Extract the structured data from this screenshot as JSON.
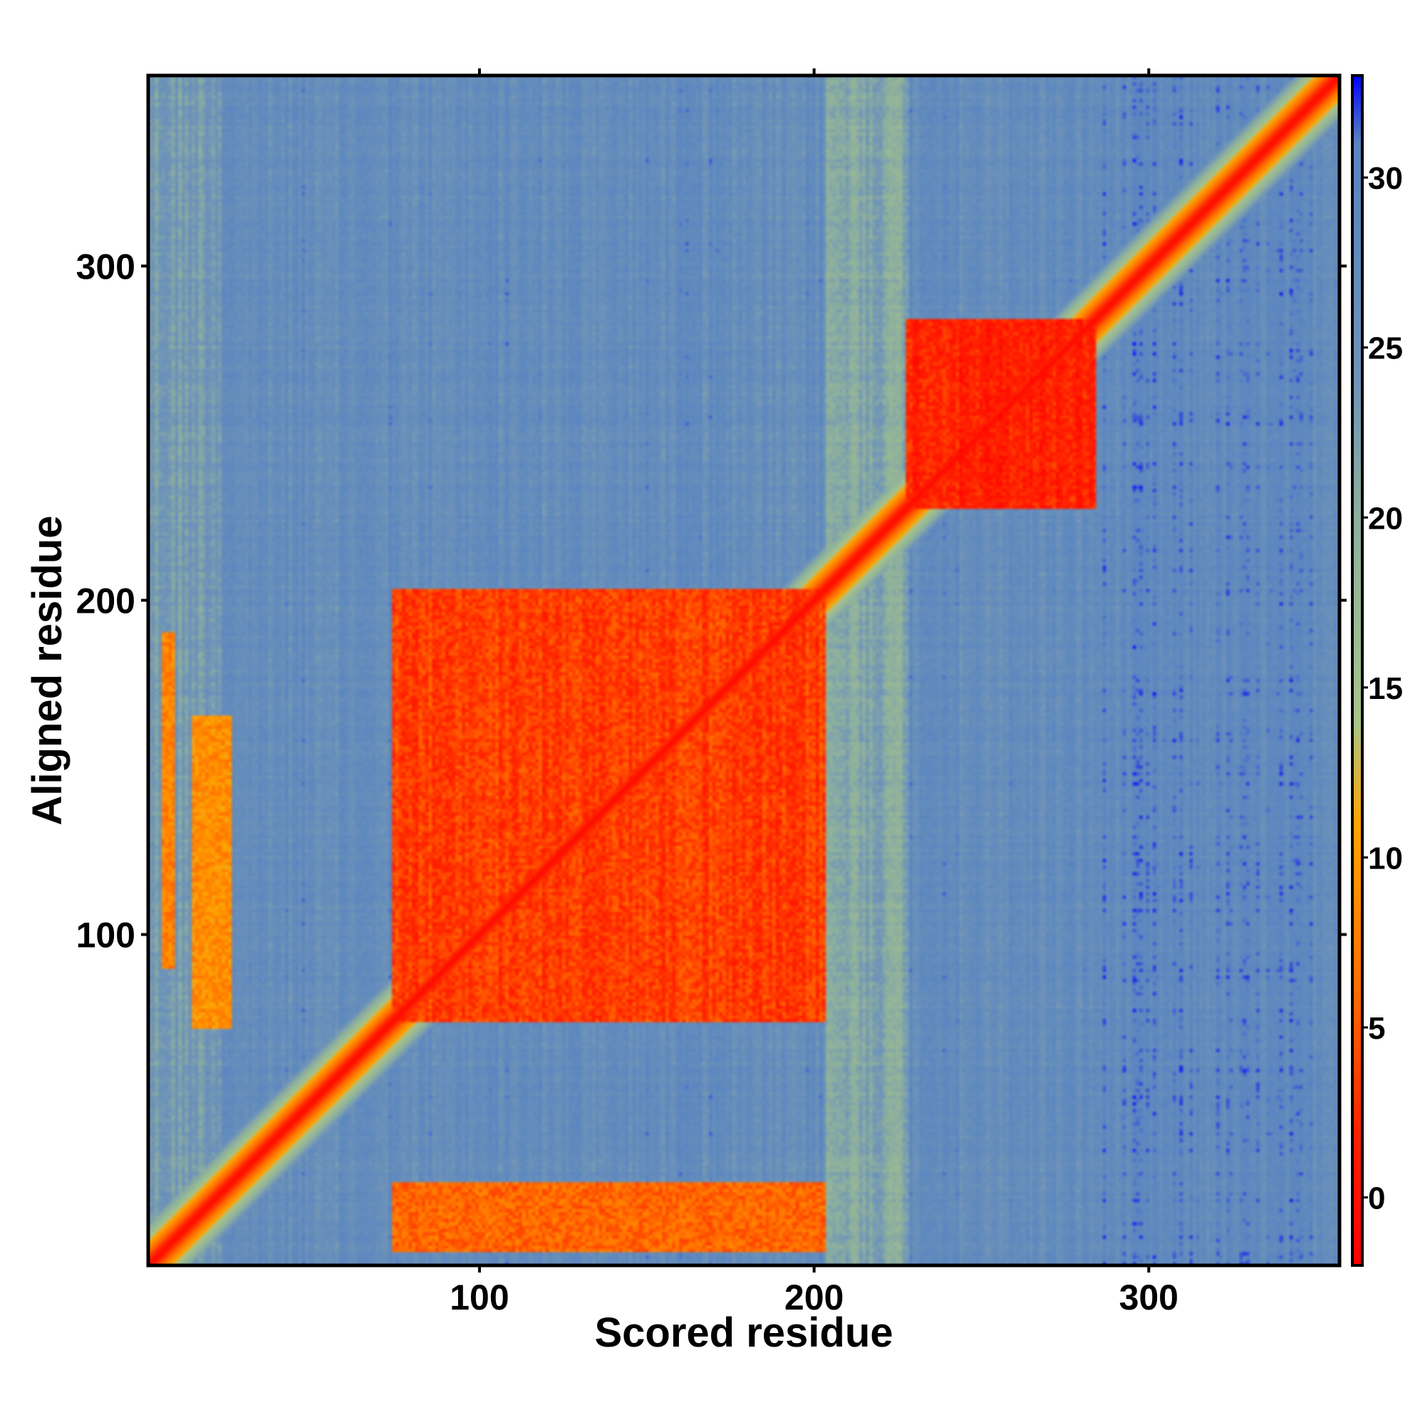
{
  "chart_data": {
    "type": "heatmap",
    "title": "",
    "xlabel": "Scored residue",
    "ylabel": "Aligned residue",
    "xlim": [
      1,
      357
    ],
    "ylim": [
      1,
      357
    ],
    "x_ticks": [
      100,
      200,
      300
    ],
    "y_ticks": [
      100,
      200,
      300
    ],
    "x_tick_labels": [
      "100",
      "200",
      "300"
    ],
    "y_tick_labels": [
      "100",
      "200",
      "300"
    ],
    "colorbar": {
      "range": [
        -2,
        33
      ],
      "ticks": [
        0,
        5,
        10,
        15,
        20,
        25,
        30
      ],
      "tick_labels": [
        "0",
        "5",
        "10",
        "15",
        "20",
        "25",
        "30"
      ],
      "stops": [
        {
          "value": -2,
          "color": "#ff0000"
        },
        {
          "value": 2,
          "color": "#ff2200"
        },
        {
          "value": 6,
          "color": "#ff6a00"
        },
        {
          "value": 11,
          "color": "#ffa500"
        },
        {
          "value": 14,
          "color": "#a8c48a"
        },
        {
          "value": 20,
          "color": "#8db09e"
        },
        {
          "value": 24,
          "color": "#6f94b8"
        },
        {
          "value": 30,
          "color": "#5b86c0"
        },
        {
          "value": 31,
          "color": "#5b86c0"
        },
        {
          "value": 33,
          "color": "#0000ff"
        }
      ]
    },
    "background_value": 27,
    "domains": [
      {
        "range": [
          74,
          203
        ],
        "value": 3.5
      },
      {
        "range": [
          228,
          284
        ],
        "value": 1.5
      }
    ],
    "off_diagonal_blocks": [
      {
        "x_range": [
          74,
          203
        ],
        "y_range": [
          5,
          25
        ],
        "value": 6
      },
      {
        "x_range": [
          5,
          8
        ],
        "y_range": [
          90,
          190
        ],
        "value": 8
      },
      {
        "x_range": [
          14,
          25
        ],
        "y_range": [
          72,
          165
        ],
        "value": 9
      }
    ],
    "band_columns": [
      {
        "x_range": [
          1,
          22
        ],
        "value": 23
      },
      {
        "x_range": [
          204,
          228
        ],
        "value": 21
      },
      {
        "x_range": [
          285,
          357
        ],
        "value": 28
      }
    ],
    "diagonal": {
      "center_value": -1,
      "halfwidth_residues": 7
    }
  }
}
